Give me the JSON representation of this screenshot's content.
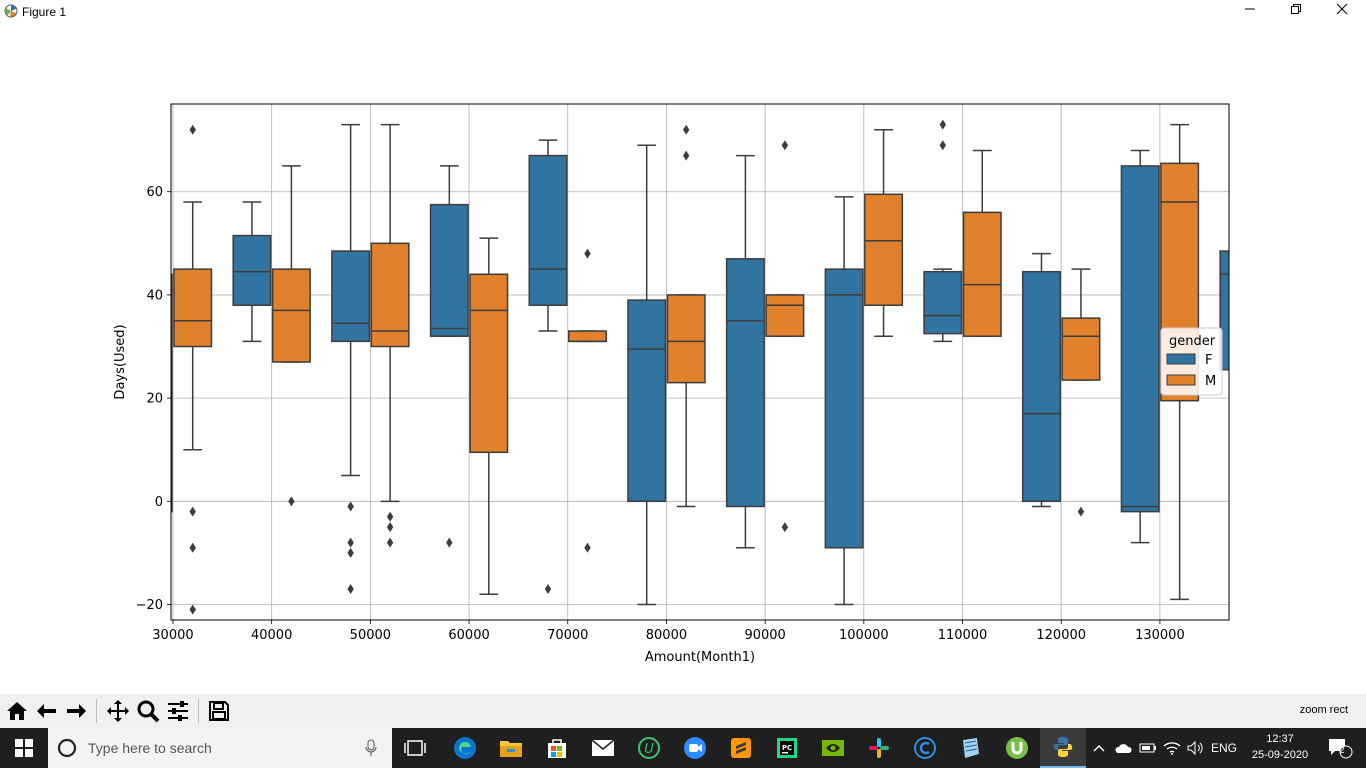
{
  "window": {
    "title": "Figure 1",
    "icon": "matplotlib-icon",
    "controls": [
      "minimize-icon",
      "maximize-icon",
      "close-icon"
    ]
  },
  "chart_data": {
    "type": "box",
    "title": "",
    "xlabel": "Amount(Month1)",
    "ylabel": "Days(Used)",
    "ylim": [
      -23,
      77
    ],
    "yticks": [
      -20,
      0,
      20,
      40,
      60
    ],
    "ytick_labels": [
      "−20",
      "0",
      "20",
      "40",
      "60"
    ],
    "xticks": [
      30000,
      40000,
      50000,
      60000,
      70000,
      80000,
      90000,
      100000,
      110000,
      120000,
      130000
    ],
    "xtick_labels": [
      "30000",
      "40000",
      "50000",
      "60000",
      "70000",
      "80000",
      "90000",
      "100000",
      "110000",
      "120000",
      "130000"
    ],
    "xlim": [
      29800,
      137000
    ],
    "grid": true,
    "legend": {
      "title": "gender",
      "placement": "right",
      "entries": [
        "F",
        "M"
      ]
    },
    "colors": {
      "F": "#3274a1",
      "M": "#e1812c"
    },
    "boxes": [
      {
        "x": 28000,
        "g": "F",
        "q1": -2,
        "med": 32,
        "q3": 44,
        "lw": -2,
        "uw": 44,
        "fl": []
      },
      {
        "x": 32000,
        "g": "M",
        "q1": 30,
        "med": 35,
        "q3": 45,
        "lw": 10,
        "uw": 58,
        "fl": [
          72,
          -2,
          -9,
          -21
        ]
      },
      {
        "x": 38000,
        "g": "F",
        "q1": 38,
        "med": 44.5,
        "q3": 51.5,
        "lw": 31,
        "uw": 58,
        "fl": []
      },
      {
        "x": 42000,
        "g": "M",
        "q1": 27,
        "med": 37,
        "q3": 45,
        "lw": 27,
        "uw": 65,
        "fl": [
          0
        ]
      },
      {
        "x": 48000,
        "g": "F",
        "q1": 31,
        "med": 34.5,
        "q3": 48.5,
        "lw": 5,
        "uw": 73,
        "fl": [
          -1,
          -8,
          -10,
          -17
        ]
      },
      {
        "x": 52000,
        "g": "M",
        "q1": 30,
        "med": 33,
        "q3": 50,
        "lw": 0,
        "uw": 73,
        "fl": [
          -3,
          -5,
          -8
        ]
      },
      {
        "x": 58000,
        "g": "F",
        "q1": 32,
        "med": 33.5,
        "q3": 57.5,
        "lw": 32,
        "uw": 65,
        "fl": [
          -8
        ]
      },
      {
        "x": 62000,
        "g": "M",
        "q1": 9.5,
        "med": 37,
        "q3": 44,
        "lw": -18,
        "uw": 51,
        "fl": []
      },
      {
        "x": 68000,
        "g": "F",
        "q1": 38,
        "med": 45,
        "q3": 67,
        "lw": 33,
        "uw": 70,
        "fl": [
          -17
        ]
      },
      {
        "x": 72000,
        "g": "M",
        "q1": 31,
        "med": 31,
        "q3": 33,
        "lw": 31,
        "uw": 33,
        "fl": [
          48,
          -9
        ]
      },
      {
        "x": 78000,
        "g": "F",
        "q1": 0,
        "med": 29.5,
        "q3": 39,
        "lw": -20,
        "uw": 69,
        "fl": []
      },
      {
        "x": 82000,
        "g": "M",
        "q1": 23,
        "med": 31,
        "q3": 40,
        "lw": -1,
        "uw": 40,
        "fl": [
          72,
          67
        ]
      },
      {
        "x": 88000,
        "g": "F",
        "q1": -1,
        "med": 35,
        "q3": 47,
        "lw": -9,
        "uw": 67,
        "fl": []
      },
      {
        "x": 92000,
        "g": "M",
        "q1": 32,
        "med": 38,
        "q3": 40,
        "lw": 32,
        "uw": 40,
        "fl": [
          69,
          -5
        ]
      },
      {
        "x": 98000,
        "g": "F",
        "q1": -9,
        "med": 40,
        "q3": 45,
        "lw": -20,
        "uw": 59,
        "fl": []
      },
      {
        "x": 102000,
        "g": "M",
        "q1": 38,
        "med": 50.5,
        "q3": 59.5,
        "lw": 32,
        "uw": 72,
        "fl": []
      },
      {
        "x": 108000,
        "g": "F",
        "q1": 32.5,
        "med": 36,
        "q3": 44.5,
        "lw": 31,
        "uw": 45,
        "fl": [
          73,
          69
        ]
      },
      {
        "x": 112000,
        "g": "M",
        "q1": 32,
        "med": 42,
        "q3": 56,
        "lw": 32,
        "uw": 68,
        "fl": []
      },
      {
        "x": 118000,
        "g": "F",
        "q1": 0,
        "med": 17,
        "q3": 44.5,
        "lw": -1,
        "uw": 48,
        "fl": []
      },
      {
        "x": 122000,
        "g": "M",
        "q1": 23.5,
        "med": 32,
        "q3": 35.5,
        "lw": 23.5,
        "uw": 45,
        "fl": [
          -2
        ]
      },
      {
        "x": 128000,
        "g": "F",
        "q1": -2,
        "med": -1,
        "q3": 65,
        "lw": -8,
        "uw": 68,
        "fl": []
      },
      {
        "x": 132000,
        "g": "M",
        "q1": 19.5,
        "med": 58,
        "q3": 65.5,
        "lw": -19,
        "uw": 73,
        "fl": []
      },
      {
        "x": 138000,
        "g": "F",
        "q1": 25.5,
        "med": 44,
        "q3": 48.5,
        "lw": 25.5,
        "uw": 48.5,
        "fl": []
      }
    ]
  },
  "toolbar": {
    "buttons": [
      "home-icon",
      "back-icon",
      "forward-icon",
      "pan-icon",
      "zoom-icon",
      "configure-subplots-icon",
      "save-icon"
    ],
    "message": "zoom rect"
  },
  "taskbar": {
    "search_placeholder": "Type here to search",
    "apps": [
      "task-view-icon",
      "edge-icon",
      "file-explorer-icon",
      "store-icon",
      "mail-icon",
      "upwork-icon",
      "zoom-app-icon",
      "sublime-icon",
      "pycharm-icon",
      "nvidia-icon",
      "slack-icon",
      "ccleaner-icon",
      "notepad-icon",
      "utorrent-icon",
      "python-icon"
    ],
    "language": "ENG",
    "time": "12:37",
    "date": "25-09-2020",
    "notifications": "2"
  }
}
